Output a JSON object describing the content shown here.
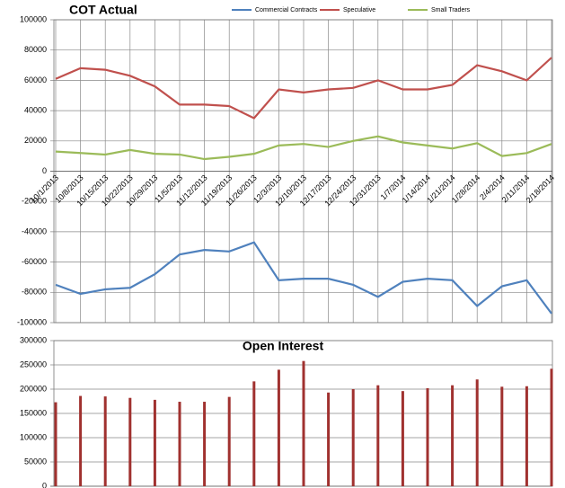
{
  "chart_data": [
    {
      "type": "line",
      "title": "COT Actual",
      "categories": [
        "10/1/2013",
        "10/8/2013",
        "10/15/2013",
        "10/22/2013",
        "10/29/2013",
        "11/5/2013",
        "11/12/2013",
        "11/19/2013",
        "11/26/2013",
        "12/3/2013",
        "12/10/2013",
        "12/17/2013",
        "12/24/2013",
        "12/31/2013",
        "1/7/2014",
        "1/14/2014",
        "1/21/2014",
        "1/28/2014",
        "2/4/2014",
        "2/11/2014",
        "2/18/2014"
      ],
      "series": [
        {
          "name": "Commercial Contracts",
          "color": "#4f81bd",
          "values": [
            -75000,
            -81000,
            -78000,
            -77000,
            -68000,
            -55000,
            -52000,
            -53000,
            -47000,
            -72000,
            -71000,
            -71000,
            -75000,
            -83000,
            -73000,
            -71000,
            -72000,
            -89000,
            -76000,
            -72000,
            -94000
          ]
        },
        {
          "name": "Speculative",
          "color": "#c0504d",
          "values": [
            61000,
            68000,
            67000,
            63000,
            56000,
            44000,
            44000,
            43000,
            35000,
            54000,
            52000,
            54000,
            55000,
            60000,
            54000,
            54000,
            57000,
            70000,
            66000,
            60000,
            75000
          ]
        },
        {
          "name": "Small Traders",
          "color": "#9bbb59",
          "values": [
            13000,
            12000,
            11000,
            14000,
            11500,
            11000,
            8000,
            9500,
            11500,
            17000,
            18000,
            16000,
            20000,
            23000,
            19000,
            17000,
            15000,
            18500,
            10000,
            12000,
            18000
          ]
        }
      ],
      "ylim": [
        -100000,
        100000
      ],
      "yticks": [
        -100000,
        -80000,
        -60000,
        -40000,
        -20000,
        0,
        20000,
        40000,
        60000,
        80000,
        100000
      ],
      "grid": true,
      "legend": "top"
    },
    {
      "type": "bar",
      "title": "Open Interest",
      "color": "#a0312f",
      "values": [
        173000,
        186000,
        185000,
        182000,
        178000,
        174000,
        174000,
        184000,
        216000,
        240000,
        258000,
        193000,
        200000,
        208000,
        196000,
        202000,
        208000,
        220000,
        205000,
        206000,
        242000
      ],
      "ylim": [
        0,
        300000
      ],
      "yticks": [
        0,
        50000,
        100000,
        150000,
        200000,
        250000,
        300000
      ],
      "grid": true
    }
  ]
}
